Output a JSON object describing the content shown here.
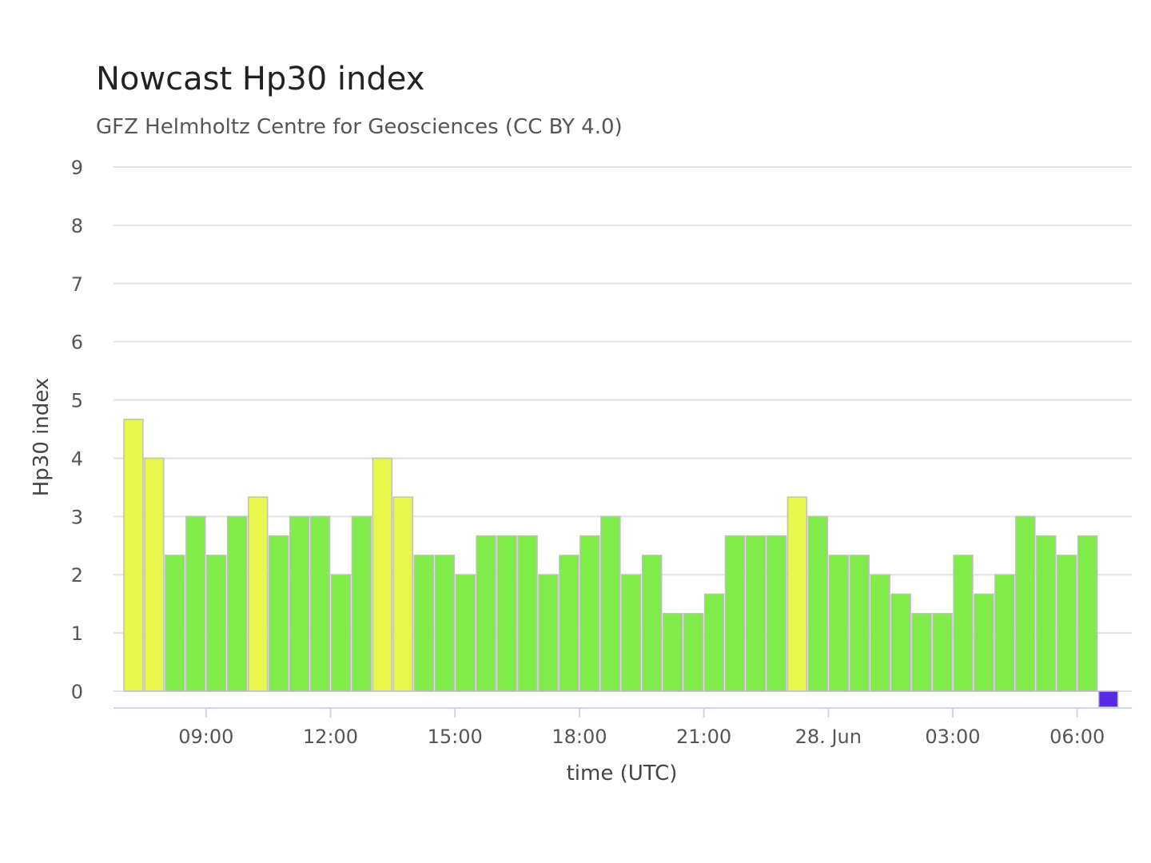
{
  "chart_data": {
    "type": "bar",
    "title": "Nowcast Hp30 index",
    "subtitle": "GFZ Helmholtz Centre for Geosciences (CC BY 4.0)",
    "xlabel": "time (UTC)",
    "ylabel": "Hp30 index",
    "ylim": [
      0,
      9
    ],
    "yticks": [
      0,
      1,
      2,
      3,
      4,
      5,
      6,
      7,
      8,
      9
    ],
    "grid": true,
    "xtick_labels": [
      "09:00",
      "12:00",
      "15:00",
      "18:00",
      "21:00",
      "28. Jun",
      "03:00",
      "06:00"
    ],
    "x_start": "27 Jun 07:00 UTC",
    "interval": "30 min",
    "values": [
      4.667,
      4.0,
      2.333,
      3.0,
      2.333,
      3.0,
      3.333,
      2.667,
      3.0,
      3.0,
      2.0,
      3.0,
      4.0,
      3.333,
      2.333,
      2.333,
      2.0,
      2.667,
      2.667,
      2.667,
      2.0,
      2.333,
      2.667,
      3.0,
      2.0,
      2.333,
      1.333,
      1.333,
      1.667,
      2.667,
      2.667,
      2.667,
      3.333,
      3.0,
      2.333,
      2.333,
      2.0,
      1.667,
      1.333,
      1.333,
      2.333,
      1.667,
      2.0,
      3.0,
      2.667,
      2.333,
      2.667,
      0.0
    ],
    "colors": {
      "low": "#80ec4a",
      "elevated": "#e8f74c",
      "latest": "#5a29e8",
      "grid": "#e2e2e2",
      "axis": "#ccd6eb"
    }
  }
}
